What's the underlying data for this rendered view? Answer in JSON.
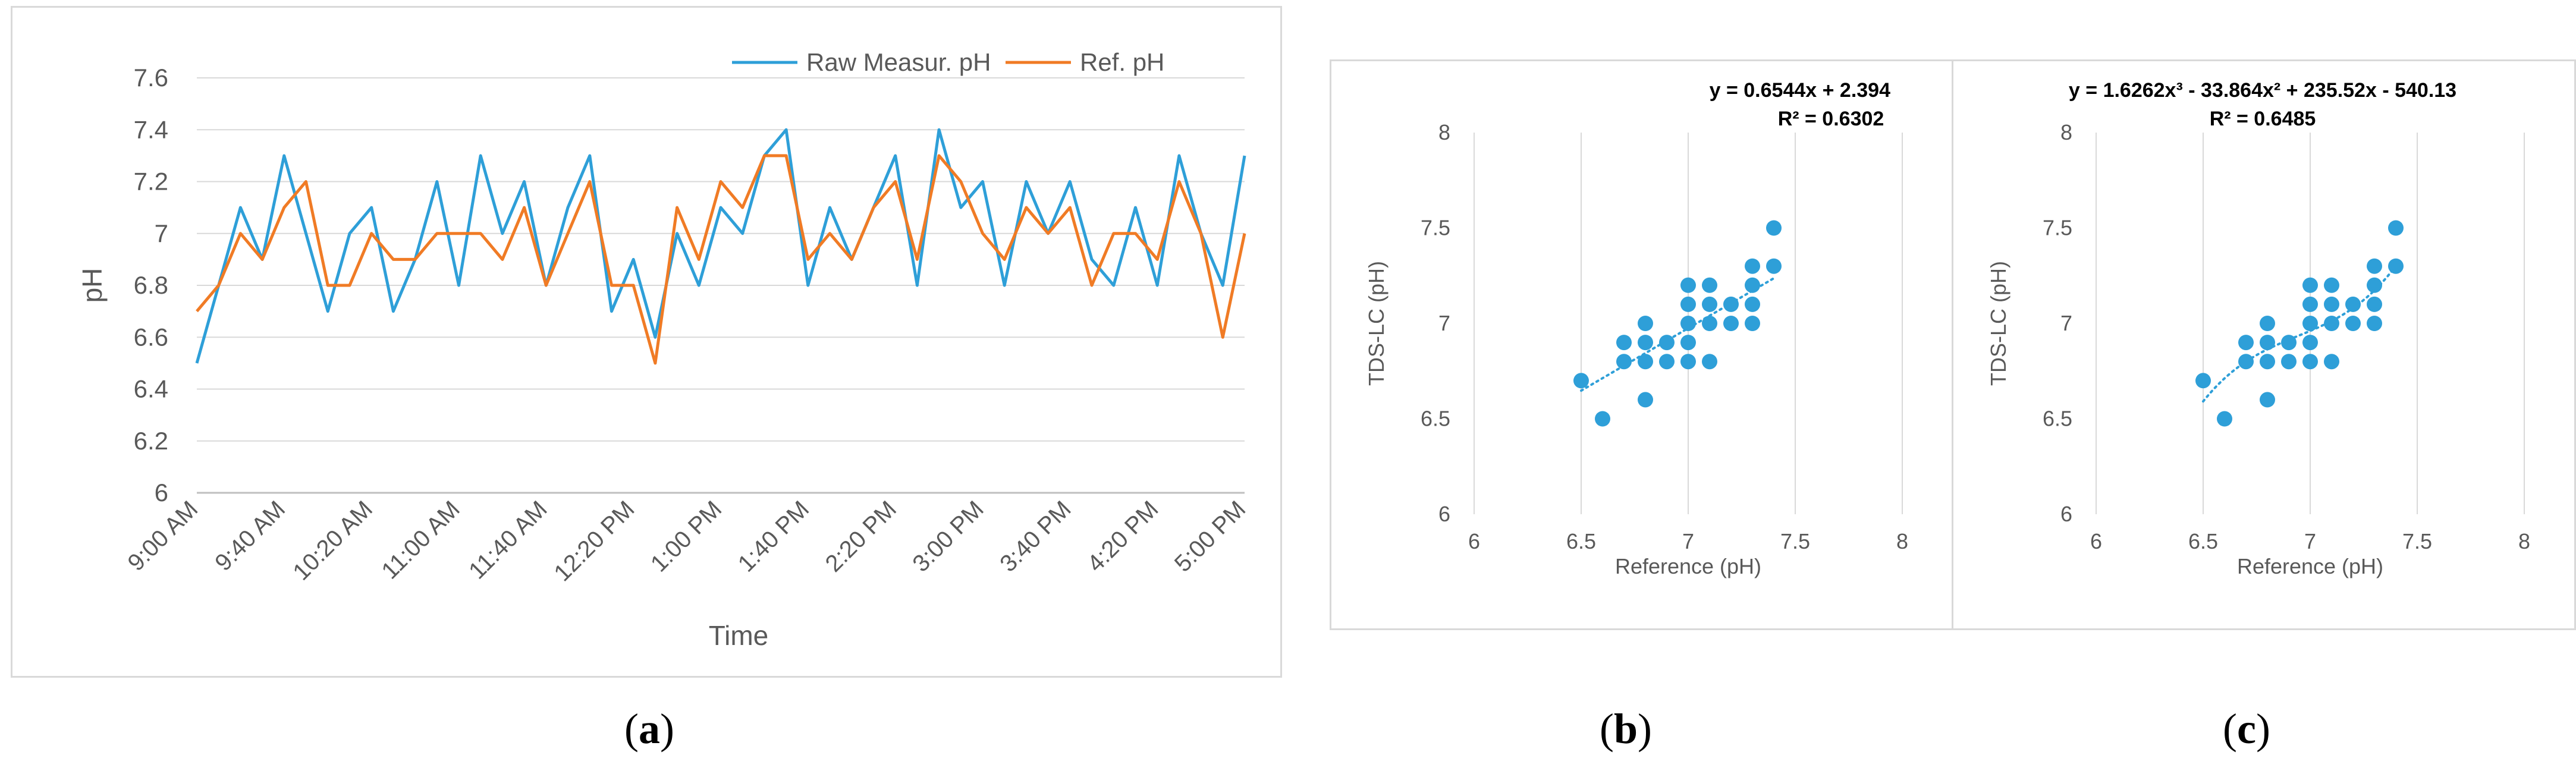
{
  "chart_data": [
    {
      "type": "line",
      "xlabel": "Time",
      "ylabel": "pH",
      "ylim": [
        6,
        7.6
      ],
      "yticks": [
        "6",
        "6.2",
        "6.4",
        "6.6",
        "6.8",
        "7",
        "7.2",
        "7.4",
        "7.6"
      ],
      "x_tick_labels": [
        "9:00 AM",
        "9:40 AM",
        "10:20 AM",
        "11:00 AM",
        "11:40 AM",
        "12:20 PM",
        "1:00 PM",
        "1:40 PM",
        "2:20 PM",
        "3:00 PM",
        "3:40 PM",
        "4:20 PM",
        "5:00 PM"
      ],
      "x": [
        "9:00 AM",
        "9:10 AM",
        "9:20 AM",
        "9:30 AM",
        "9:40 AM",
        "9:50 AM",
        "10:00 AM",
        "10:10 AM",
        "10:20 AM",
        "10:30 AM",
        "10:40 AM",
        "10:50 AM",
        "11:00 AM",
        "11:10 AM",
        "11:20 AM",
        "11:30 AM",
        "11:40 AM",
        "11:50 AM",
        "12:00 PM",
        "12:10 PM",
        "12:20 PM",
        "12:30 PM",
        "12:40 PM",
        "12:50 PM",
        "1:00 PM",
        "1:10 PM",
        "1:20 PM",
        "1:30 PM",
        "1:40 PM",
        "1:50 PM",
        "2:00 PM",
        "2:10 PM",
        "2:20 PM",
        "2:30 PM",
        "2:40 PM",
        "2:50 PM",
        "3:00 PM",
        "3:10 PM",
        "3:20 PM",
        "3:30 PM",
        "3:40 PM",
        "3:50 PM",
        "4:00 PM",
        "4:10 PM",
        "4:20 PM",
        "4:30 PM",
        "4:40 PM",
        "4:50 PM",
        "5:00 PM"
      ],
      "legend_position": "top-right",
      "grid": "horizontal",
      "series": [
        {
          "name": "Raw Measur. pH",
          "color": "#2e9fd8",
          "values": [
            6.5,
            6.8,
            7.1,
            6.9,
            7.3,
            7.0,
            6.7,
            7.0,
            7.1,
            6.7,
            6.9,
            7.2,
            6.8,
            7.3,
            7.0,
            7.2,
            6.8,
            7.1,
            7.3,
            6.7,
            6.9,
            6.6,
            7.0,
            6.8,
            7.1,
            7.0,
            7.3,
            7.4,
            6.8,
            7.1,
            6.9,
            7.1,
            7.3,
            6.8,
            7.4,
            7.1,
            7.2,
            6.8,
            7.2,
            7.0,
            7.2,
            6.9,
            6.8,
            7.1,
            6.8,
            7.3,
            7.0,
            6.8,
            7.3
          ]
        },
        {
          "name": "Ref. pH",
          "color": "#f07b25",
          "values": [
            6.7,
            6.8,
            7.0,
            6.9,
            7.1,
            7.2,
            6.8,
            6.8,
            7.0,
            6.9,
            6.9,
            7.0,
            7.0,
            7.0,
            6.9,
            7.1,
            6.8,
            7.0,
            7.2,
            6.8,
            6.8,
            6.5,
            7.1,
            6.9,
            7.2,
            7.1,
            7.3,
            7.3,
            6.9,
            7.0,
            6.9,
            7.1,
            7.2,
            6.9,
            7.3,
            7.2,
            7.0,
            6.9,
            7.1,
            7.0,
            7.1,
            6.8,
            7.0,
            7.0,
            6.9,
            7.2,
            7.0,
            6.6,
            7.0
          ]
        }
      ]
    },
    {
      "type": "scatter",
      "xlabel": "Reference (pH)",
      "ylabel": "TDS-LC (pH)",
      "xlim": [
        6,
        8
      ],
      "ylim": [
        6,
        8
      ],
      "xticks": [
        "6",
        "6.5",
        "7",
        "7.5",
        "8"
      ],
      "yticks": [
        "6",
        "6.5",
        "7",
        "7.5",
        "8"
      ],
      "grid": "vertical",
      "color": "#2e9fd8",
      "trendline": {
        "kind": "linear",
        "coef": [
          0.6544,
          2.394
        ],
        "x_range": [
          6.5,
          7.4
        ]
      },
      "equation": "y = 0.6544x + 2.394",
      "r2": "R² = 0.6302",
      "points": [
        [
          6.5,
          6.7
        ],
        [
          6.6,
          6.5
        ],
        [
          6.7,
          6.8
        ],
        [
          6.7,
          6.9
        ],
        [
          6.8,
          6.6
        ],
        [
          6.8,
          6.8
        ],
        [
          6.8,
          6.9
        ],
        [
          6.8,
          7.0
        ],
        [
          6.9,
          6.8
        ],
        [
          6.9,
          6.9
        ],
        [
          7.0,
          6.8
        ],
        [
          7.0,
          6.9
        ],
        [
          7.0,
          7.0
        ],
        [
          7.0,
          7.1
        ],
        [
          7.0,
          7.2
        ],
        [
          7.1,
          6.8
        ],
        [
          7.1,
          7.0
        ],
        [
          7.1,
          7.1
        ],
        [
          7.1,
          7.2
        ],
        [
          7.2,
          7.0
        ],
        [
          7.2,
          7.1
        ],
        [
          7.3,
          7.0
        ],
        [
          7.3,
          7.1
        ],
        [
          7.3,
          7.2
        ],
        [
          7.3,
          7.3
        ],
        [
          7.4,
          7.3
        ],
        [
          7.4,
          7.5
        ]
      ]
    },
    {
      "type": "scatter",
      "xlabel": "Reference (pH)",
      "ylabel": "TDS-LC (pH)",
      "xlim": [
        6,
        8
      ],
      "ylim": [
        6,
        8
      ],
      "xticks": [
        "6",
        "6.5",
        "7",
        "7.5",
        "8"
      ],
      "yticks": [
        "6",
        "6.5",
        "7",
        "7.5",
        "8"
      ],
      "grid": "vertical",
      "color": "#2e9fd8",
      "trendline": {
        "kind": "cubic",
        "coef": [
          1.6262,
          -33.864,
          235.52,
          -540.13
        ],
        "x_range": [
          6.5,
          7.4
        ]
      },
      "equation": "y = 1.6262x³ - 33.864x² + 235.52x - 540.13",
      "r2": "R² = 0.6485",
      "points": [
        [
          6.5,
          6.7
        ],
        [
          6.6,
          6.5
        ],
        [
          6.7,
          6.8
        ],
        [
          6.7,
          6.9
        ],
        [
          6.8,
          6.6
        ],
        [
          6.8,
          6.8
        ],
        [
          6.8,
          6.9
        ],
        [
          6.8,
          7.0
        ],
        [
          6.9,
          6.8
        ],
        [
          6.9,
          6.9
        ],
        [
          7.0,
          6.8
        ],
        [
          7.0,
          6.9
        ],
        [
          7.0,
          7.0
        ],
        [
          7.0,
          7.1
        ],
        [
          7.0,
          7.2
        ],
        [
          7.1,
          6.8
        ],
        [
          7.1,
          7.0
        ],
        [
          7.1,
          7.1
        ],
        [
          7.1,
          7.2
        ],
        [
          7.2,
          7.0
        ],
        [
          7.2,
          7.1
        ],
        [
          7.3,
          7.0
        ],
        [
          7.3,
          7.1
        ],
        [
          7.3,
          7.2
        ],
        [
          7.3,
          7.3
        ],
        [
          7.4,
          7.3
        ],
        [
          7.4,
          7.5
        ]
      ]
    }
  ],
  "captions": [
    "a",
    "b",
    "c"
  ]
}
